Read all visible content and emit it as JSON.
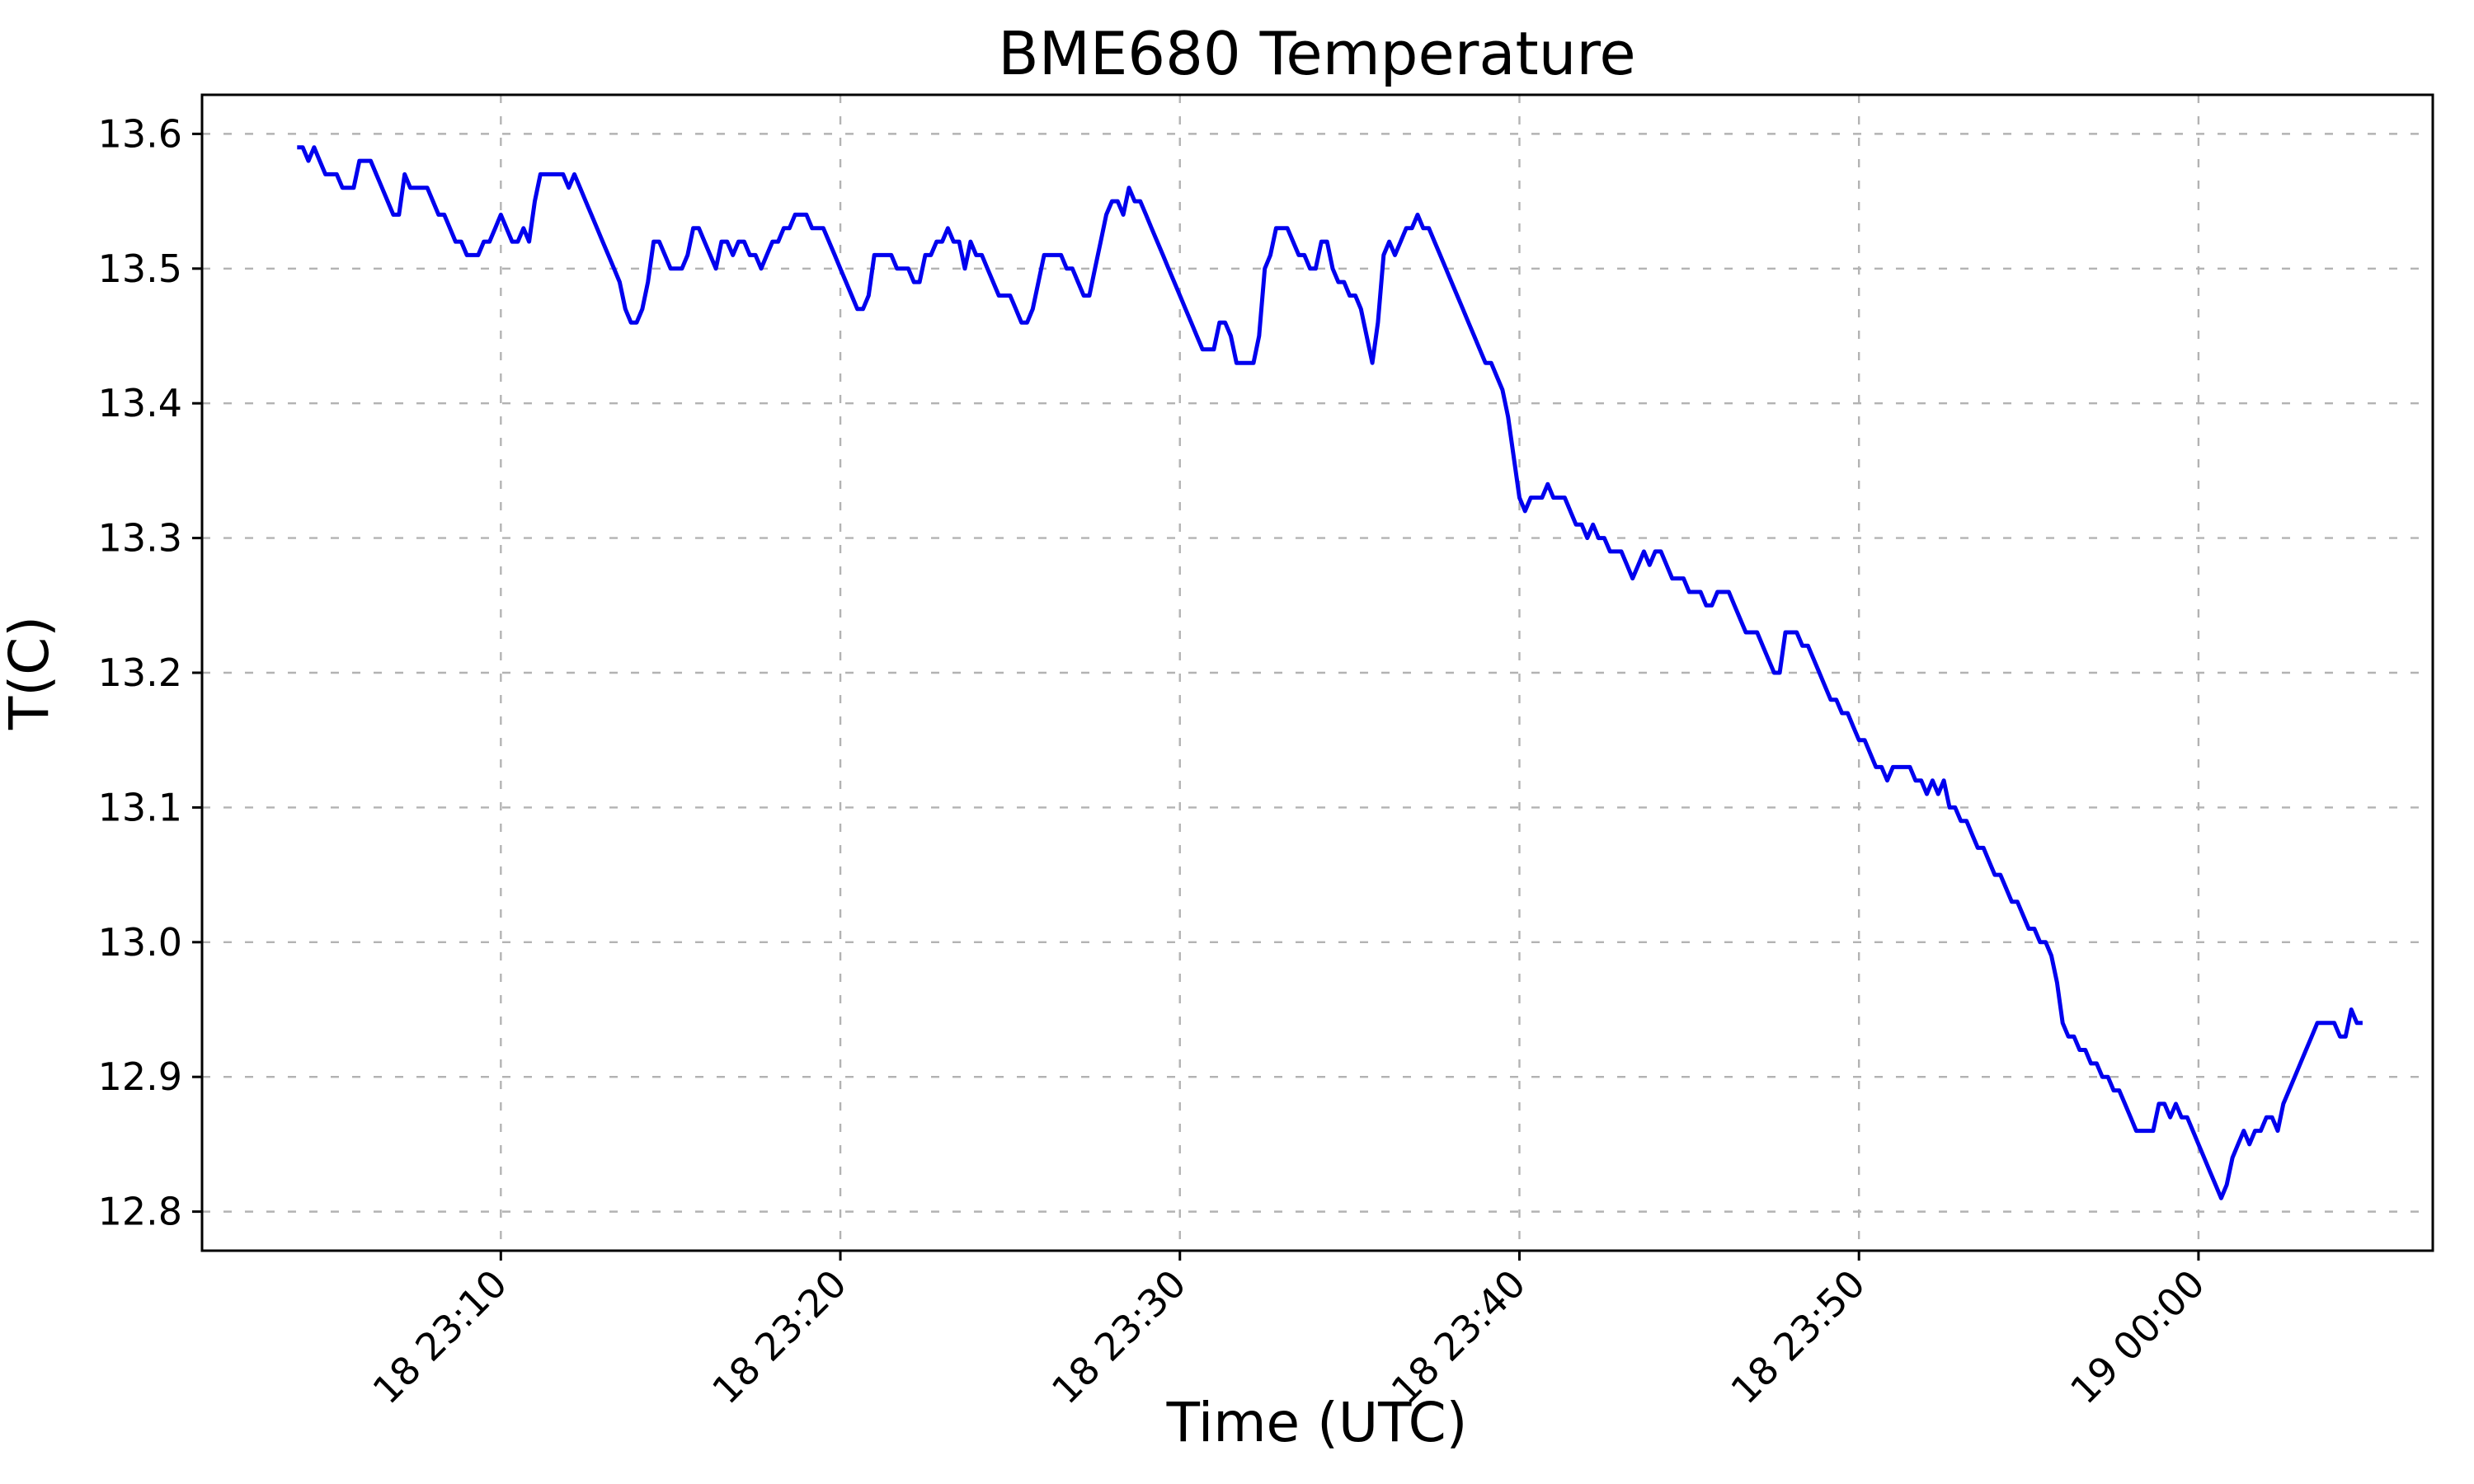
{
  "window": {
    "background": "#ffffff"
  },
  "chart_data": {
    "type": "line",
    "title": "BME680 Temperature",
    "xlabel": "Time (UTC)",
    "ylabel": "T(C)",
    "legend": null,
    "grid": true,
    "grid_style": "dashed",
    "grid_color": "#b3b3b3",
    "axis_color": "#000000",
    "background": "#ffffff",
    "line_color": "#0000ee",
    "x_unit": "minutes after 18 Dec 23:00 UTC",
    "x_start_min": 4.0,
    "x_step_min": 0.1666667,
    "xlim": [
      1.2,
      66.9
    ],
    "ylim": [
      12.771,
      13.629
    ],
    "x_ticks": [
      {
        "pos": 10,
        "label": "18 23:10"
      },
      {
        "pos": 20,
        "label": "18 23:20"
      },
      {
        "pos": 30,
        "label": "18 23:30"
      },
      {
        "pos": 40,
        "label": "18 23:40"
      },
      {
        "pos": 50,
        "label": "18 23:50"
      },
      {
        "pos": 60,
        "label": "19 00:00"
      }
    ],
    "y_ticks": [
      12.8,
      12.9,
      13.0,
      13.1,
      13.2,
      13.3,
      13.4,
      13.5,
      13.6
    ],
    "values": [
      13.59,
      13.59,
      13.58,
      13.59,
      13.58,
      13.57,
      13.57,
      13.57,
      13.56,
      13.56,
      13.56,
      13.58,
      13.58,
      13.58,
      13.57,
      13.56,
      13.55,
      13.54,
      13.54,
      13.57,
      13.56,
      13.56,
      13.56,
      13.56,
      13.55,
      13.54,
      13.54,
      13.53,
      13.52,
      13.52,
      13.51,
      13.51,
      13.51,
      13.52,
      13.52,
      13.53,
      13.54,
      13.53,
      13.52,
      13.52,
      13.53,
      13.52,
      13.55,
      13.57,
      13.57,
      13.57,
      13.57,
      13.57,
      13.56,
      13.57,
      13.56,
      13.55,
      13.54,
      13.53,
      13.52,
      13.51,
      13.5,
      13.49,
      13.47,
      13.46,
      13.46,
      13.47,
      13.49,
      13.52,
      13.52,
      13.51,
      13.5,
      13.5,
      13.5,
      13.51,
      13.53,
      13.53,
      13.52,
      13.51,
      13.5,
      13.52,
      13.52,
      13.51,
      13.52,
      13.52,
      13.51,
      13.51,
      13.5,
      13.51,
      13.52,
      13.52,
      13.53,
      13.53,
      13.54,
      13.54,
      13.54,
      13.53,
      13.53,
      13.53,
      13.52,
      13.51,
      13.5,
      13.49,
      13.48,
      13.47,
      13.47,
      13.48,
      13.51,
      13.51,
      13.51,
      13.51,
      13.5,
      13.5,
      13.5,
      13.49,
      13.49,
      13.51,
      13.51,
      13.52,
      13.52,
      13.53,
      13.52,
      13.52,
      13.5,
      13.52,
      13.51,
      13.51,
      13.5,
      13.49,
      13.48,
      13.48,
      13.48,
      13.47,
      13.46,
      13.46,
      13.47,
      13.49,
      13.51,
      13.51,
      13.51,
      13.51,
      13.5,
      13.5,
      13.49,
      13.48,
      13.48,
      13.5,
      13.52,
      13.54,
      13.55,
      13.55,
      13.54,
      13.56,
      13.55,
      13.55,
      13.54,
      13.53,
      13.52,
      13.51,
      13.5,
      13.49,
      13.48,
      13.47,
      13.46,
      13.45,
      13.44,
      13.44,
      13.44,
      13.46,
      13.46,
      13.45,
      13.43,
      13.43,
      13.43,
      13.43,
      13.45,
      13.5,
      13.51,
      13.53,
      13.53,
      13.53,
      13.52,
      13.51,
      13.51,
      13.5,
      13.5,
      13.52,
      13.52,
      13.5,
      13.49,
      13.49,
      13.48,
      13.48,
      13.47,
      13.45,
      13.43,
      13.46,
      13.51,
      13.52,
      13.51,
      13.52,
      13.53,
      13.53,
      13.54,
      13.53,
      13.53,
      13.52,
      13.51,
      13.5,
      13.49,
      13.48,
      13.47,
      13.46,
      13.45,
      13.44,
      13.43,
      13.43,
      13.42,
      13.41,
      13.39,
      13.36,
      13.33,
      13.32,
      13.33,
      13.33,
      13.33,
      13.34,
      13.33,
      13.33,
      13.33,
      13.32,
      13.31,
      13.31,
      13.3,
      13.31,
      13.3,
      13.3,
      13.29,
      13.29,
      13.29,
      13.28,
      13.27,
      13.28,
      13.29,
      13.28,
      13.29,
      13.29,
      13.28,
      13.27,
      13.27,
      13.27,
      13.26,
      13.26,
      13.26,
      13.25,
      13.25,
      13.26,
      13.26,
      13.26,
      13.25,
      13.24,
      13.23,
      13.23,
      13.23,
      13.22,
      13.21,
      13.2,
      13.2,
      13.23,
      13.23,
      13.23,
      13.22,
      13.22,
      13.21,
      13.2,
      13.19,
      13.18,
      13.18,
      13.17,
      13.17,
      13.16,
      13.15,
      13.15,
      13.14,
      13.13,
      13.13,
      13.12,
      13.13,
      13.13,
      13.13,
      13.13,
      13.12,
      13.12,
      13.11,
      13.12,
      13.11,
      13.12,
      13.1,
      13.1,
      13.09,
      13.09,
      13.08,
      13.07,
      13.07,
      13.06,
      13.05,
      13.05,
      13.04,
      13.03,
      13.03,
      13.02,
      13.01,
      13.01,
      13.0,
      13.0,
      12.99,
      12.97,
      12.94,
      12.93,
      12.93,
      12.92,
      12.92,
      12.91,
      12.91,
      12.9,
      12.9,
      12.89,
      12.89,
      12.88,
      12.87,
      12.86,
      12.86,
      12.86,
      12.86,
      12.88,
      12.88,
      12.87,
      12.88,
      12.87,
      12.87,
      12.86,
      12.85,
      12.84,
      12.83,
      12.82,
      12.81,
      12.82,
      12.84,
      12.85,
      12.86,
      12.85,
      12.86,
      12.86,
      12.87,
      12.87,
      12.86,
      12.88,
      12.89,
      12.9,
      12.91,
      12.92,
      12.93,
      12.94,
      12.94,
      12.94,
      12.94,
      12.93,
      12.93,
      12.95,
      12.94,
      12.94
    ]
  }
}
